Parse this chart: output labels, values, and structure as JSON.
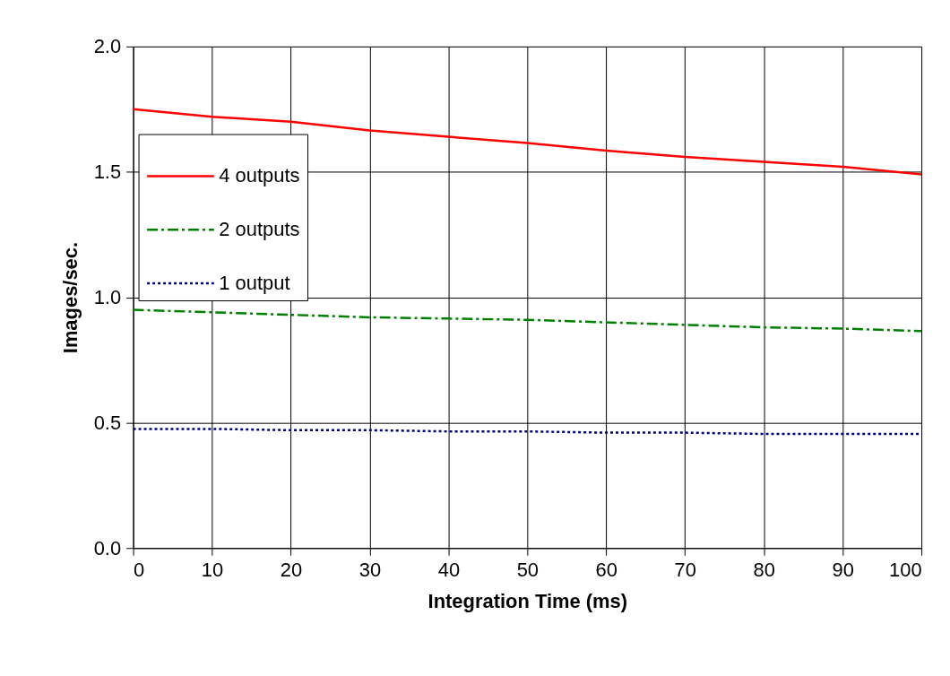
{
  "chart_data": {
    "type": "line",
    "xlabel": "Integration Time (ms)",
    "ylabel": "Images/sec.",
    "x": [
      0,
      10,
      20,
      30,
      40,
      50,
      60,
      70,
      80,
      90,
      100
    ],
    "series": [
      {
        "name": "4 outputs",
        "color": "#ff0000",
        "line_style": "solid",
        "values": [
          1.75,
          1.72,
          1.7,
          1.665,
          1.64,
          1.615,
          1.585,
          1.56,
          1.54,
          1.52,
          1.49
        ]
      },
      {
        "name": "2 outputs",
        "color": "#008000",
        "line_style": "dashed",
        "values": [
          0.95,
          0.94,
          0.93,
          0.92,
          0.915,
          0.91,
          0.9,
          0.89,
          0.88,
          0.875,
          0.865
        ]
      },
      {
        "name": "1 output",
        "color": "#000080",
        "line_style": "dotted",
        "values": [
          0.475,
          0.475,
          0.47,
          0.47,
          0.465,
          0.465,
          0.46,
          0.46,
          0.455,
          0.455,
          0.455
        ]
      }
    ],
    "xlim": [
      0,
      100
    ],
    "xticks": [
      0,
      10,
      20,
      30,
      40,
      50,
      60,
      70,
      80,
      90,
      100
    ],
    "ylim": [
      0,
      2
    ],
    "yticks": [
      {
        "value": 0,
        "label": "0.0"
      },
      {
        "value": 0.5,
        "label": "0.5"
      },
      {
        "value": 1,
        "label": "1.0"
      },
      {
        "value": 1.5,
        "label": "1.5"
      },
      {
        "value": 2,
        "label": "2.0"
      }
    ],
    "grid": true,
    "legend": "top left",
    "marker": "none"
  }
}
